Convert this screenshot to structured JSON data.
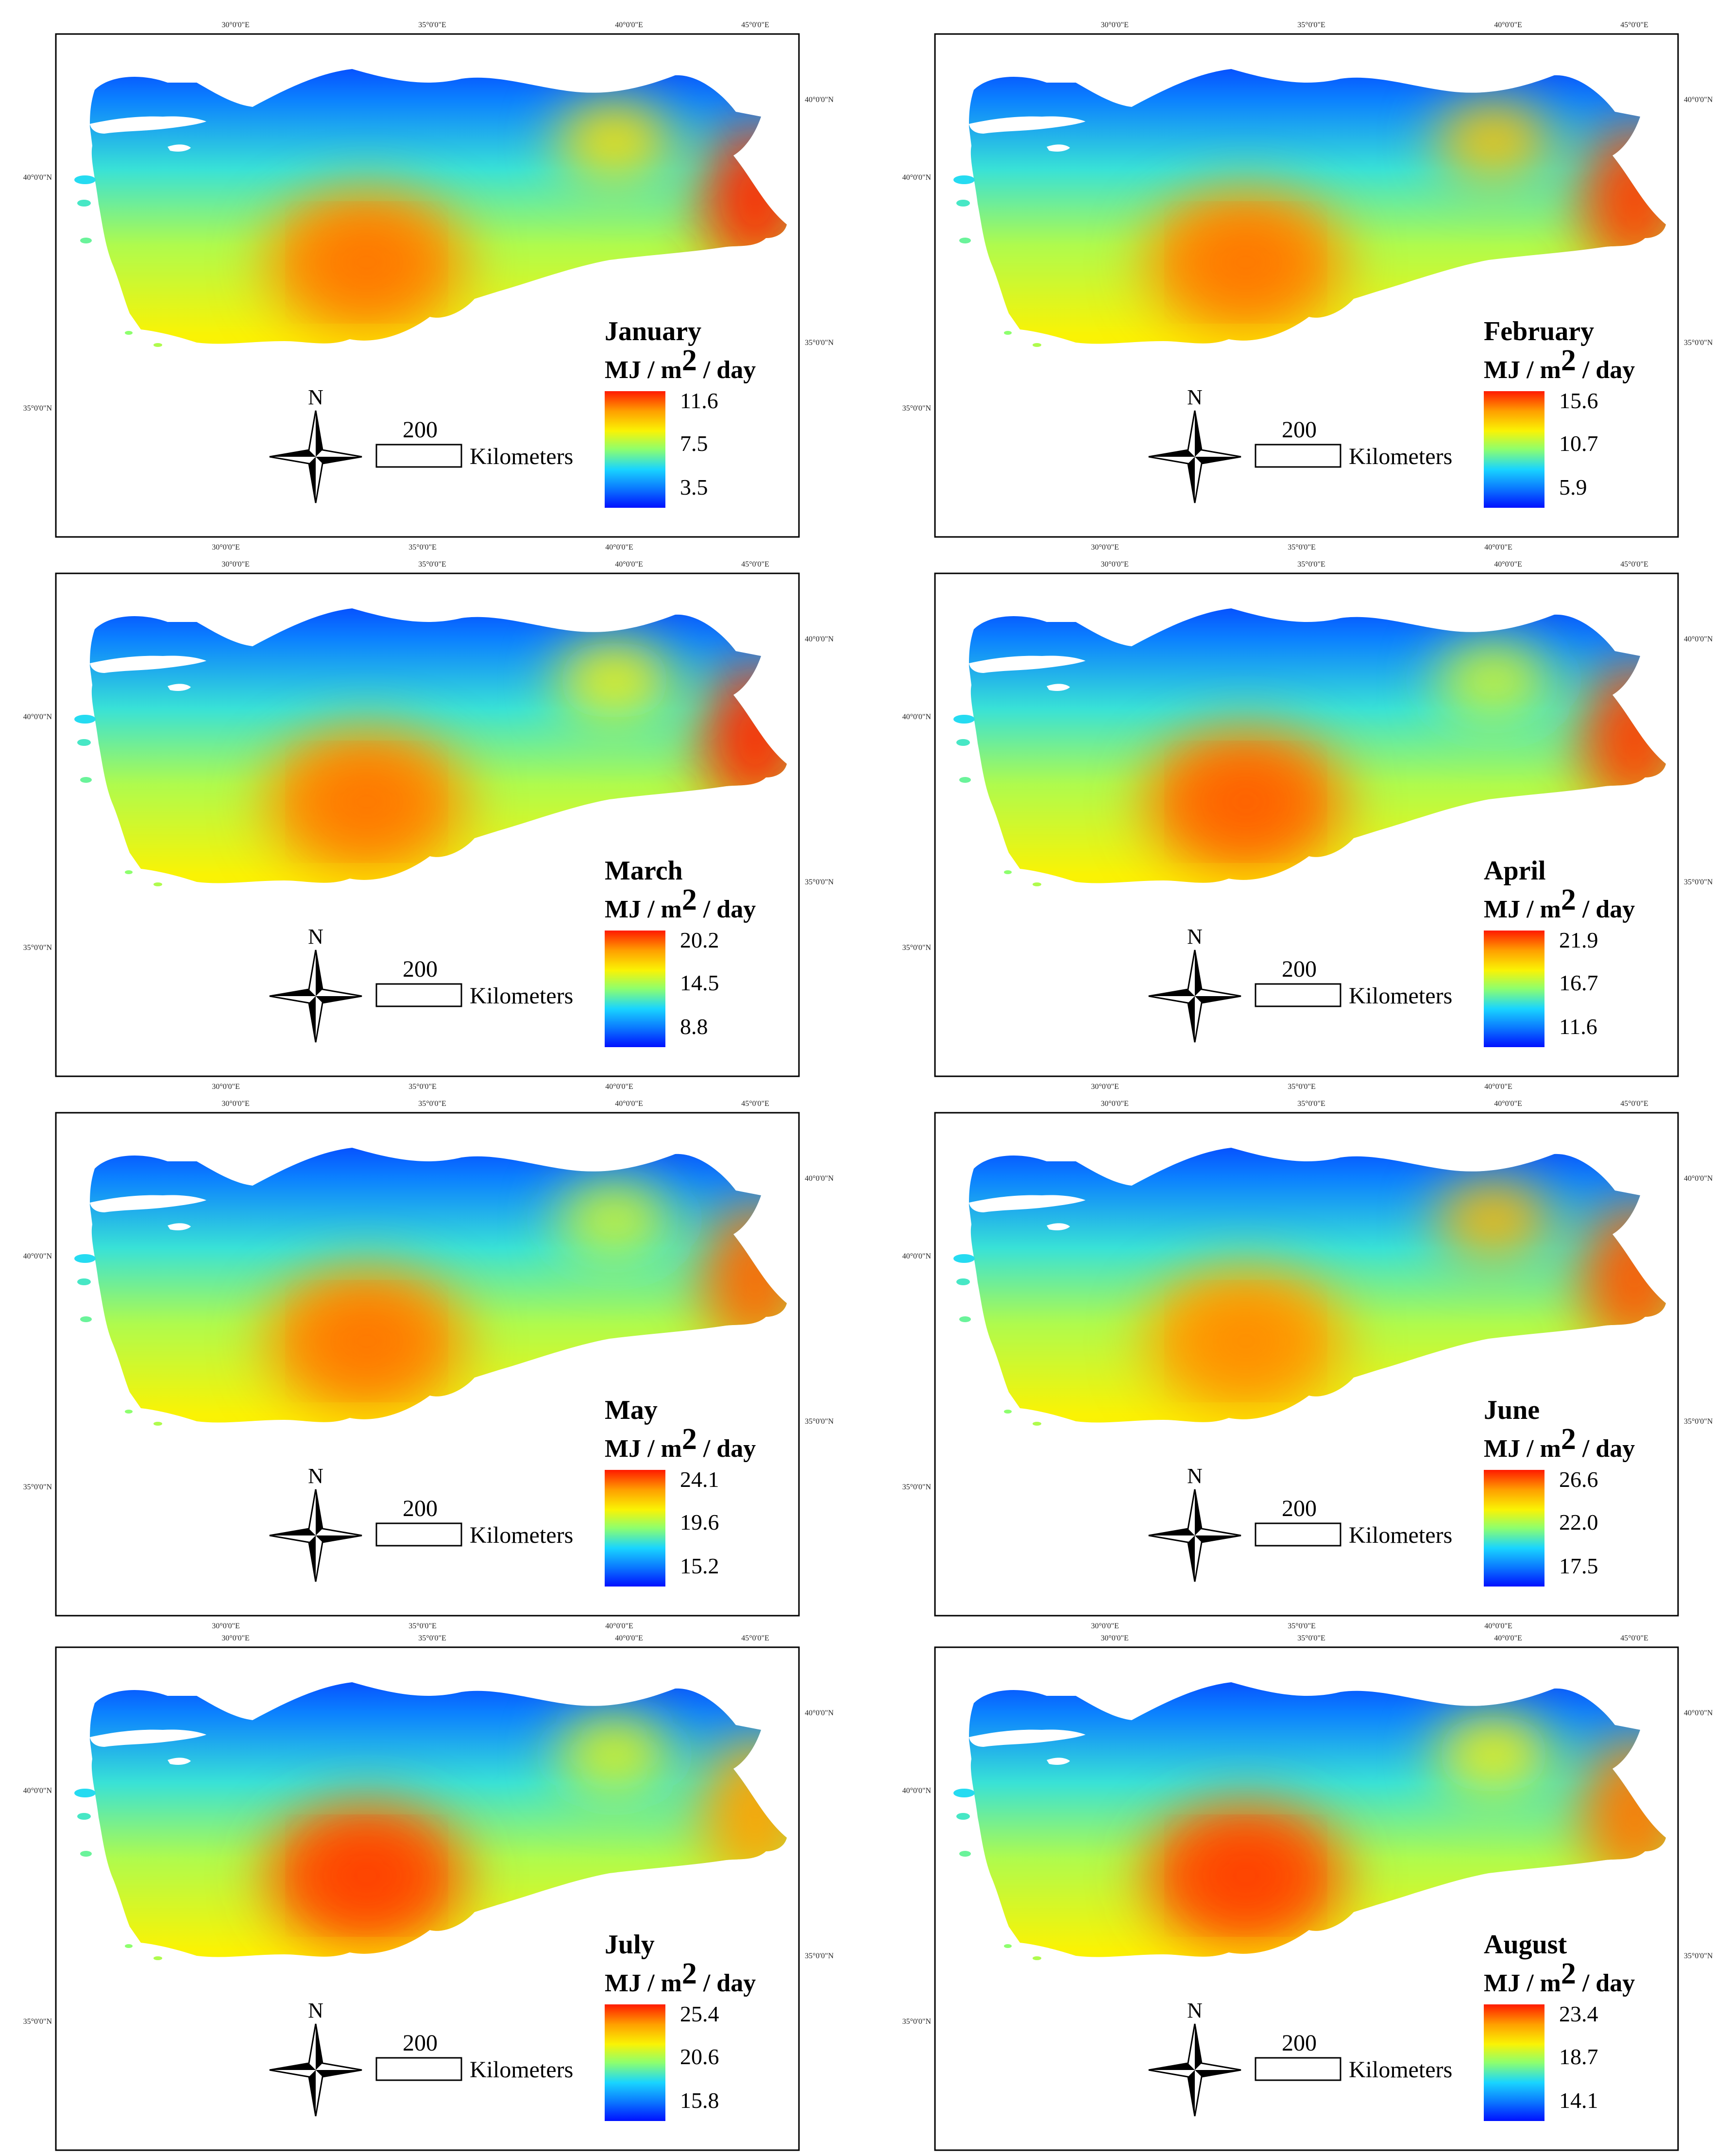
{
  "figure": {
    "unit_prefix": "MJ / m",
    "unit_exponent": "2",
    "unit_suffix": " / day",
    "north_label": "N",
    "scale_value": "200",
    "scale_unit": "Kilometers",
    "colormap": [
      "#0010ff",
      "#0a7aff",
      "#19d7ff",
      "#8dff6e",
      "#fff200",
      "#ff9c00",
      "#ff1a00"
    ],
    "panels": [
      {
        "month": "January",
        "legend_max": "11.6",
        "legend_mid": "7.5",
        "legend_min": "3.5",
        "lon_labels": [
          "30°0'0\"E",
          "35°0'0\"E",
          "40°0'0\"E",
          "45°0'0\"E"
        ],
        "lat_labels": [
          "40°0'0\"N",
          "35°0'0\"N"
        ],
        "hotspots": [
          {
            "name": "central-anatolia",
            "level": 0.85
          },
          {
            "name": "east-anatolia",
            "level": 0.7
          },
          {
            "name": "far-east",
            "level": 0.98
          }
        ]
      },
      {
        "month": "February",
        "legend_max": "15.6",
        "legend_mid": "10.7",
        "legend_min": "5.9",
        "lon_labels": [
          "30°0'0\"E",
          "35°0'0\"E",
          "40°0'0\"E",
          "45°0'0\"E"
        ],
        "lat_labels": [
          "40°0'0\"N",
          "35°0'0\"N"
        ],
        "hotspots": [
          {
            "name": "central-anatolia",
            "level": 0.85
          },
          {
            "name": "east-anatolia",
            "level": 0.75
          },
          {
            "name": "far-east",
            "level": 0.95
          }
        ]
      },
      {
        "month": "March",
        "legend_max": "20.2",
        "legend_mid": "14.5",
        "legend_min": "8.8",
        "lon_labels": [
          "30°0'0\"E",
          "35°0'0\"E",
          "40°0'0\"E",
          "45°0'0\"E"
        ],
        "lat_labels": [
          "40°0'0\"N",
          "35°0'0\"N"
        ],
        "hotspots": [
          {
            "name": "central-anatolia",
            "level": 0.85
          },
          {
            "name": "east-anatolia",
            "level": 0.65
          },
          {
            "name": "far-east",
            "level": 0.98
          }
        ]
      },
      {
        "month": "April",
        "legend_max": "21.9",
        "legend_mid": "16.7",
        "legend_min": "11.6",
        "lon_labels": [
          "30°0'0\"E",
          "35°0'0\"E",
          "40°0'0\"E",
          "45°0'0\"E"
        ],
        "lat_labels": [
          "40°0'0\"N",
          "35°0'0\"N"
        ],
        "hotspots": [
          {
            "name": "central-anatolia",
            "level": 0.88
          },
          {
            "name": "east-anatolia",
            "level": 0.6
          },
          {
            "name": "far-east",
            "level": 0.95
          }
        ]
      },
      {
        "month": "May",
        "legend_max": "24.1",
        "legend_mid": "19.6",
        "legend_min": "15.2",
        "lon_labels": [
          "30°0'0\"E",
          "35°0'0\"E",
          "40°0'0\"E",
          "45°0'0\"E"
        ],
        "lat_labels": [
          "40°0'0\"N",
          "35°0'0\"N"
        ],
        "hotspots": [
          {
            "name": "central-anatolia",
            "level": 0.85
          },
          {
            "name": "east-anatolia",
            "level": 0.6
          },
          {
            "name": "far-east",
            "level": 0.9
          }
        ]
      },
      {
        "month": "June",
        "legend_max": "26.6",
        "legend_mid": "22.0",
        "legend_min": "17.5",
        "lon_labels": [
          "30°0'0\"E",
          "35°0'0\"E",
          "40°0'0\"E",
          "45°0'0\"E"
        ],
        "lat_labels": [
          "40°0'0\"N",
          "35°0'0\"N"
        ],
        "hotspots": [
          {
            "name": "central-anatolia",
            "level": 0.82
          },
          {
            "name": "east-anatolia",
            "level": 0.78
          },
          {
            "name": "far-east",
            "level": 0.92
          }
        ]
      },
      {
        "month": "July",
        "legend_max": "25.4",
        "legend_mid": "20.6",
        "legend_min": "15.8",
        "lon_labels": [
          "30°0'0\"E",
          "35°0'0\"E",
          "40°0'0\"E",
          "45°0'0\"E"
        ],
        "lat_labels": [
          "40°0'0\"N",
          "35°0'0\"N"
        ],
        "hotspots": [
          {
            "name": "central-anatolia",
            "level": 0.92
          },
          {
            "name": "east-anatolia",
            "level": 0.62
          },
          {
            "name": "far-east",
            "level": 0.82
          }
        ]
      },
      {
        "month": "August",
        "legend_max": "23.4",
        "legend_mid": "18.7",
        "legend_min": "14.1",
        "lon_labels": [
          "30°0'0\"E",
          "35°0'0\"E",
          "40°0'0\"E",
          "45°0'0\"E"
        ],
        "lat_labels": [
          "40°0'0\"N",
          "35°0'0\"N"
        ],
        "hotspots": [
          {
            "name": "central-anatolia",
            "level": 0.92
          },
          {
            "name": "east-anatolia",
            "level": 0.65
          },
          {
            "name": "far-east",
            "level": 0.88
          }
        ]
      }
    ]
  }
}
